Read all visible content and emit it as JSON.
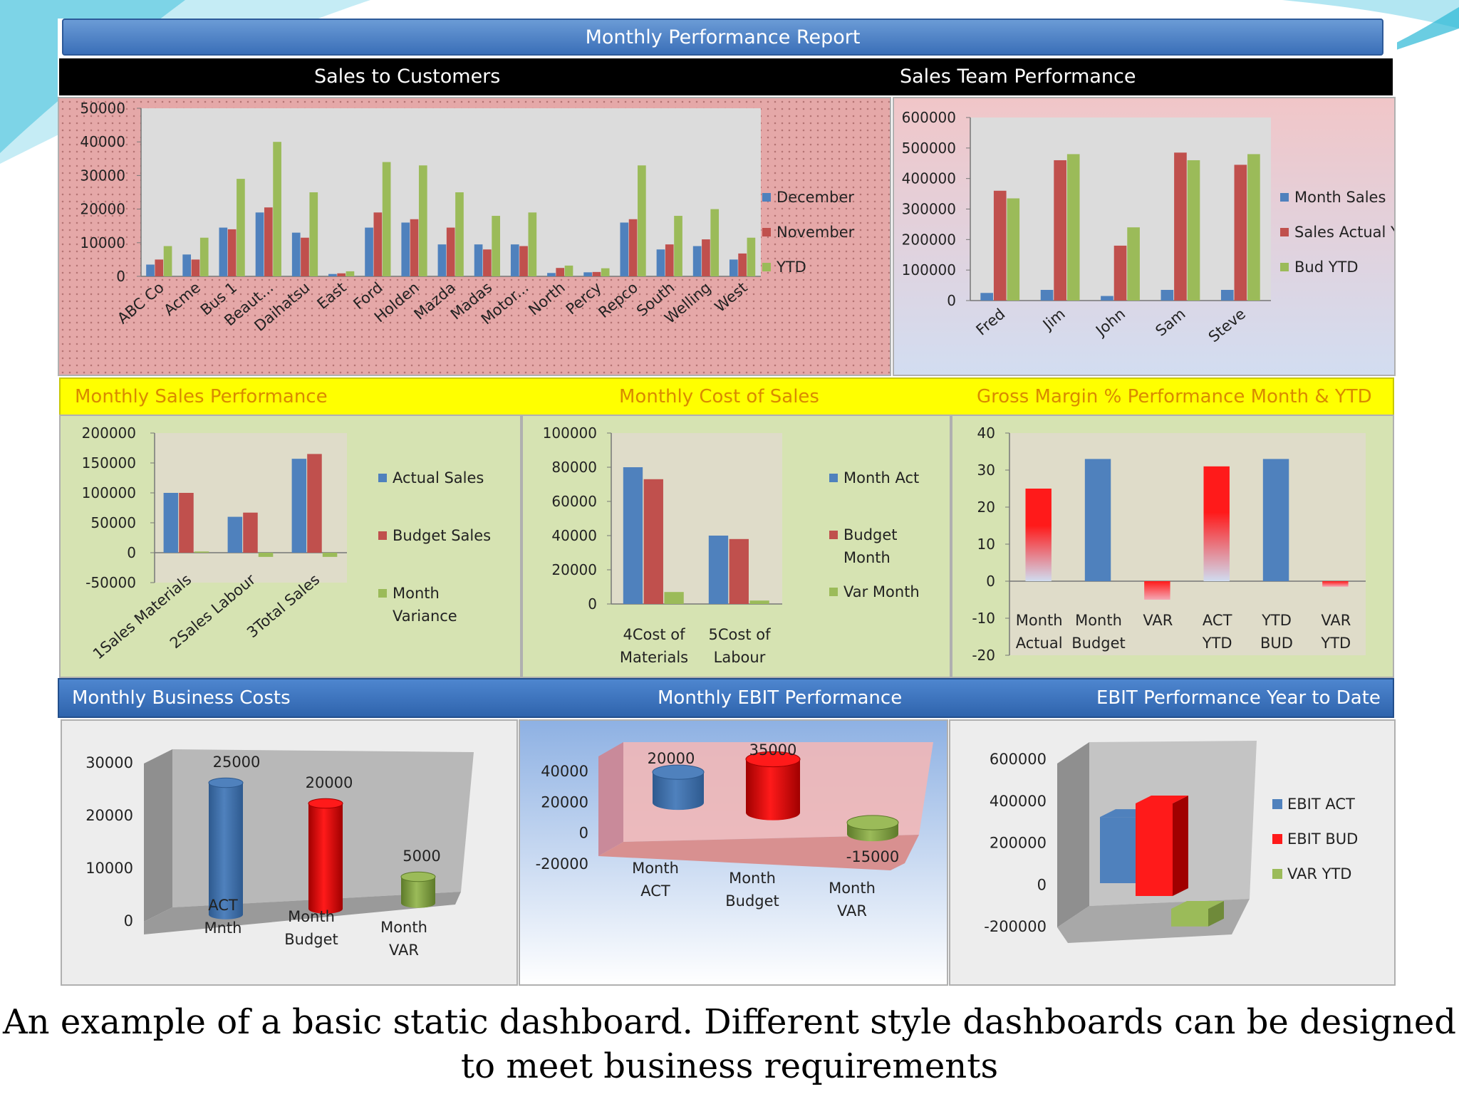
{
  "report_title": "Monthly Performance Report",
  "headers": {
    "sales_to_customers": "Sales to Customers",
    "sales_team": "Sales Team Performance",
    "monthly_sales": "Monthly Sales Performance",
    "monthly_cost": "Monthly Cost of Sales",
    "gross_margin": "Gross Margin % Performance  Month & YTD",
    "business_costs": "Monthly Business Costs",
    "ebit_month": "Monthly EBIT Performance",
    "ebit_ytd": "EBIT Performance Year to Date"
  },
  "caption": "An example of a basic static dashboard.  Different style dashboards can be designed to meet business requirements",
  "colors": {
    "blue": "#4f81bd",
    "red": "#c0504d",
    "green": "#9bbb59"
  },
  "chart_data": [
    {
      "id": "customers",
      "type": "bar",
      "categories": [
        "ABC Co",
        "Acme",
        "Bus 1",
        "Beaut...",
        "Daihatsu",
        "East",
        "Ford",
        "Holden",
        "Mazda",
        "Madas",
        "Motor...",
        "North",
        "Percy",
        "Repco",
        "South",
        "Welling",
        "West"
      ],
      "series": [
        {
          "name": "December",
          "values": [
            3500,
            6500,
            14500,
            19000,
            13000,
            700,
            14500,
            16000,
            9500,
            9500,
            9500,
            1000,
            1200,
            16000,
            8000,
            9000,
            5000
          ]
        },
        {
          "name": "November",
          "values": [
            5000,
            5000,
            14000,
            20500,
            11500,
            900,
            19000,
            17000,
            14500,
            8000,
            9000,
            2500,
            1300,
            17000,
            9500,
            11000,
            6800
          ]
        },
        {
          "name": "YTD",
          "values": [
            9000,
            11500,
            29000,
            40000,
            25000,
            1500,
            34000,
            33000,
            25000,
            18000,
            19000,
            3200,
            2400,
            33000,
            18000,
            20000,
            11500
          ]
        }
      ],
      "yticks": [
        "50000",
        "40000",
        "30000",
        "20000",
        "10000",
        "0"
      ],
      "ylim": [
        0,
        50000
      ],
      "legend": "right"
    },
    {
      "id": "team",
      "type": "bar",
      "categories": [
        "Fred",
        "Jim",
        "John",
        "Sam",
        "Steve"
      ],
      "series": [
        {
          "name": "Month Sales",
          "values": [
            25000,
            35000,
            15000,
            35000,
            35000
          ]
        },
        {
          "name": "Sales Actual YTD",
          "values": [
            360000,
            460000,
            180000,
            485000,
            445000
          ]
        },
        {
          "name": "Bud YTD",
          "values": [
            335000,
            480000,
            240000,
            460000,
            480000
          ]
        }
      ],
      "yticks": [
        "600000",
        "500000",
        "400000",
        "300000",
        "200000",
        "100000",
        "0"
      ],
      "ylim": [
        0,
        600000
      ],
      "legend": "right"
    },
    {
      "id": "monthly_sales",
      "type": "bar",
      "categories": [
        "1Sales Materials",
        "2Sales Labour",
        "3Total Sales"
      ],
      "series": [
        {
          "name": "Actual Sales",
          "values": [
            100000,
            60000,
            157000
          ]
        },
        {
          "name": "Budget Sales",
          "values": [
            100000,
            67000,
            165000
          ]
        },
        {
          "name": "Month Variance",
          "values": [
            2000,
            -7000,
            -7000
          ]
        }
      ],
      "yticks": [
        "200000",
        "150000",
        "100000",
        "50000",
        "0",
        "-50000"
      ],
      "ylim": [
        -50000,
        200000
      ],
      "legend": "right"
    },
    {
      "id": "cost_of_sales",
      "type": "bar",
      "categories": [
        "4Cost of Materials",
        "5Cost of Labour"
      ],
      "series": [
        {
          "name": "Month Act",
          "values": [
            80000,
            40000
          ]
        },
        {
          "name": "Budget Month",
          "values": [
            73000,
            38000
          ]
        },
        {
          "name": "Var Month",
          "values": [
            7000,
            2000
          ]
        }
      ],
      "yticks": [
        "100000",
        "80000",
        "60000",
        "40000",
        "20000",
        "0"
      ],
      "ylim": [
        0,
        100000
      ],
      "legend": "right"
    },
    {
      "id": "gross_margin",
      "type": "bar",
      "categories": [
        "Month Actual",
        "Month Budget",
        "VAR",
        "ACT YTD",
        "YTD BUD",
        "VAR YTD"
      ],
      "values": [
        25,
        33,
        -5,
        31,
        33,
        -1.5
      ],
      "yticks": [
        "40",
        "30",
        "20",
        "10",
        "0",
        "-10",
        "-20"
      ],
      "ylim": [
        -20,
        40
      ]
    },
    {
      "id": "business_costs",
      "type": "bar",
      "categories": [
        "ACT Mnth",
        "Month Budget",
        "Month VAR"
      ],
      "values": [
        25000,
        20000,
        5000
      ],
      "data_labels": [
        "25000",
        "20000",
        "5000"
      ],
      "yticks": [
        "30000",
        "20000",
        "10000",
        "0"
      ],
      "ylim": [
        0,
        30000
      ]
    },
    {
      "id": "ebit_month",
      "type": "bar",
      "categories": [
        "Month ACT",
        "Month Budget",
        "Month VAR"
      ],
      "values": [
        20000,
        35000,
        -15000
      ],
      "data_labels": [
        "20000",
        "35000",
        "-15000"
      ],
      "yticks": [
        "40000",
        "20000",
        "0",
        "-20000"
      ],
      "ylim": [
        -20000,
        40000
      ]
    },
    {
      "id": "ebit_ytd",
      "type": "bar",
      "categories": [
        "EBIT ACT",
        "EBIT BUD",
        "VAR YTD"
      ],
      "values": [
        300000,
        420000,
        -80000
      ],
      "yticks": [
        "600000",
        "400000",
        "200000",
        "0",
        "-200000"
      ],
      "ylim": [
        -200000,
        600000
      ],
      "legend": "right"
    }
  ]
}
